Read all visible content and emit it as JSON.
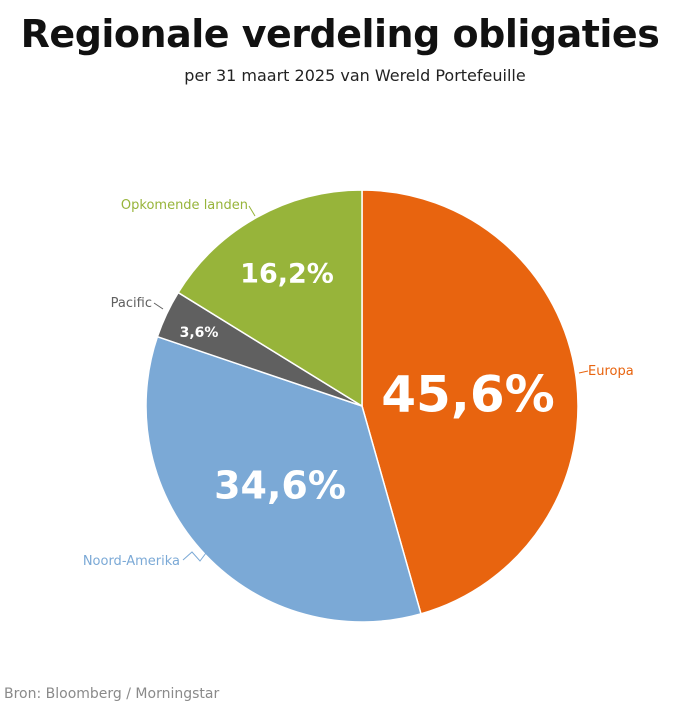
{
  "title": "Regionale verdeling obligaties",
  "subtitle": "per 31 maart 2025 van Wereld Portefeuille",
  "source": "Bron: Bloomberg / Morningstar",
  "chart_data": {
    "type": "pie",
    "title": "Regionale verdeling obligaties",
    "subtitle": "per 31 maart 2025 van Wereld Portefeuille",
    "categories": [
      "Europa",
      "Noord-Amerika",
      "Pacific",
      "Opkomende landen"
    ],
    "values": [
      45.6,
      34.6,
      3.6,
      16.2
    ],
    "value_labels": [
      "45,6%",
      "34,6%",
      "3,6%",
      "16,2%"
    ],
    "colors": [
      "#E8640F",
      "#7BA9D6",
      "#606060",
      "#97B43A"
    ],
    "start_angle": "12 o'clock",
    "direction": "clockwise",
    "legend": "none (labels next to slices)",
    "source": "Bron: Bloomberg / Morningstar"
  }
}
